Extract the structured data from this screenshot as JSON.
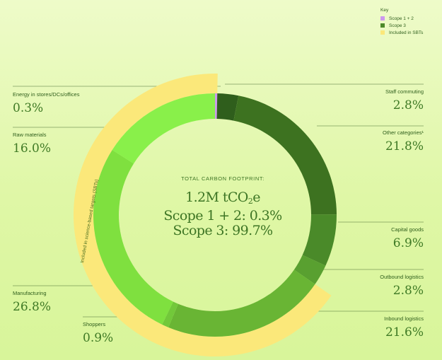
{
  "key": {
    "title": "Key",
    "items": [
      {
        "label": "Scope 1 + 2",
        "color": "#cc99ee"
      },
      {
        "label": "Scope 3",
        "color": "#4c8a2a"
      },
      {
        "label": "Included in SBTs",
        "color": "#fbe87a"
      }
    ]
  },
  "center": {
    "heading": "TOTAL CARBON FOOTPRINT:",
    "total_prefix": "1.2M tCO",
    "total_sub": "2",
    "total_suffix": "e",
    "scope12": "Scope 1 + 2: 0.3%",
    "scope3": "Scope 3: 99.7%"
  },
  "sbt_label": "Included in science-based targets (SBTs)",
  "labels": [
    {
      "id": "energy",
      "name": "Energy in stores/DCs/offices",
      "value": "0.3%"
    },
    {
      "id": "raw",
      "name": "Raw materials",
      "value": "16.0%"
    },
    {
      "id": "manufacturing",
      "name": "Manufacturing",
      "value": "26.8%"
    },
    {
      "id": "shoppers",
      "name": "Shoppers",
      "value": "0.9%"
    },
    {
      "id": "staff",
      "name": "Staff commuting",
      "value": "2.8%"
    },
    {
      "id": "other",
      "name": "Other categories¹",
      "value": "21.8%"
    },
    {
      "id": "capital",
      "name": "Capital goods",
      "value": "6.9%"
    },
    {
      "id": "outbound",
      "name": "Outbound logistics",
      "value": "2.8%"
    },
    {
      "id": "inbound",
      "name": "Inbound logistics",
      "value": "21.6%"
    }
  ],
  "chart_data": {
    "type": "pie",
    "title": "TOTAL CARBON FOOTPRINT:",
    "unit": "%",
    "slices": [
      {
        "label": "Energy in stores/DCs/offices",
        "value": 0.3,
        "scope": "Scope 1 + 2",
        "in_sbt": true,
        "color": "#cc99ee"
      },
      {
        "label": "Staff commuting",
        "value": 2.8,
        "scope": "Scope 3",
        "in_sbt": false,
        "color": "#2f5e1c"
      },
      {
        "label": "Other categories¹",
        "value": 21.8,
        "scope": "Scope 3",
        "in_sbt": false,
        "color": "#3d7220"
      },
      {
        "label": "Capital goods",
        "value": 6.9,
        "scope": "Scope 3",
        "in_sbt": false,
        "color": "#4a8a29"
      },
      {
        "label": "Outbound logistics",
        "value": 2.8,
        "scope": "Scope 3",
        "in_sbt": false,
        "color": "#59a030"
      },
      {
        "label": "Inbound logistics",
        "value": 21.6,
        "scope": "Scope 3",
        "in_sbt": true,
        "color": "#69b534"
      },
      {
        "label": "Shoppers",
        "value": 0.9,
        "scope": "Scope 3",
        "in_sbt": true,
        "color": "#72c83a"
      },
      {
        "label": "Manufacturing",
        "value": 26.8,
        "scope": "Scope 3",
        "in_sbt": true,
        "color": "#7fe03f"
      },
      {
        "label": "Raw materials",
        "value": 16.0,
        "scope": "Scope 3",
        "in_sbt": true,
        "color": "#89f04a"
      }
    ],
    "sbt_band_color": "#fbe87a",
    "legend_position": "top-right"
  }
}
